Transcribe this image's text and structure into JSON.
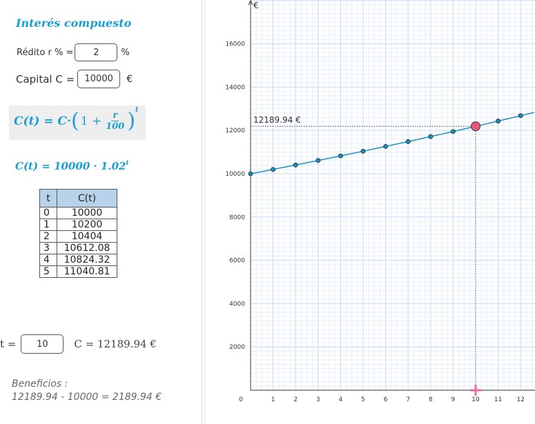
{
  "title": "Interés compuesto",
  "redito": {
    "label": "Rédito  r % =",
    "value": "2",
    "unit": "%"
  },
  "capital": {
    "label": "Capital C =",
    "value": "10000",
    "unit": "€"
  },
  "formula": {
    "lhs": "C(t) = C·",
    "open": "(",
    "one_plus": "1 +",
    "num": "r",
    "den": "100",
    "close": ")",
    "exp": "t"
  },
  "formula_instance": {
    "text": "C(t) = 10000 · 1.02",
    "exp": "t"
  },
  "table": {
    "headers": [
      "t",
      "C(t)"
    ],
    "rows": [
      [
        "0",
        "10000"
      ],
      [
        "1",
        "10200"
      ],
      [
        "2",
        "10404"
      ],
      [
        "3",
        "10612.08"
      ],
      [
        "4",
        "10824.32"
      ],
      [
        "5",
        "11040.81"
      ]
    ]
  },
  "t_input": {
    "label": "t =",
    "value": "10",
    "result": "C = 12189.94 €"
  },
  "beneficios": {
    "label": "Beneficios :",
    "text": "12189.94 - 10000 = 2189.94 €"
  },
  "chart_data": {
    "type": "line",
    "title": "",
    "xlabel": "",
    "ylabel": "€",
    "xlim": [
      0,
      12.6
    ],
    "ylim": [
      0,
      18200
    ],
    "x_ticks": [
      "0",
      "1",
      "2",
      "3",
      "4",
      "5",
      "6",
      "7",
      "8",
      "9",
      "10",
      "11",
      "12"
    ],
    "y_ticks": [
      "2000",
      "4000",
      "6000",
      "8000",
      "10000",
      "12000",
      "14000",
      "16000"
    ],
    "grid": true,
    "series": [
      {
        "x": [
          0,
          1,
          2,
          3,
          4,
          5,
          6,
          7,
          8,
          9,
          10,
          11,
          12
        ],
        "values": [
          10000,
          10200,
          10404,
          10612.08,
          10824.32,
          11040.81,
          11261.62,
          11486.86,
          11716.59,
          11950.93,
          12189.94,
          12433.74,
          12682.42
        ]
      }
    ],
    "highlight": {
      "x": 10,
      "y": 12189.94,
      "label": "12189.94 €"
    },
    "colors": {
      "line": "#1a8fc4",
      "point": "#1a8fc4",
      "highlight": "#e8587a",
      "slider_marker": "#ef6aa0",
      "grid_major": "#c8def2",
      "grid_minor": "#e6f0fa"
    }
  }
}
